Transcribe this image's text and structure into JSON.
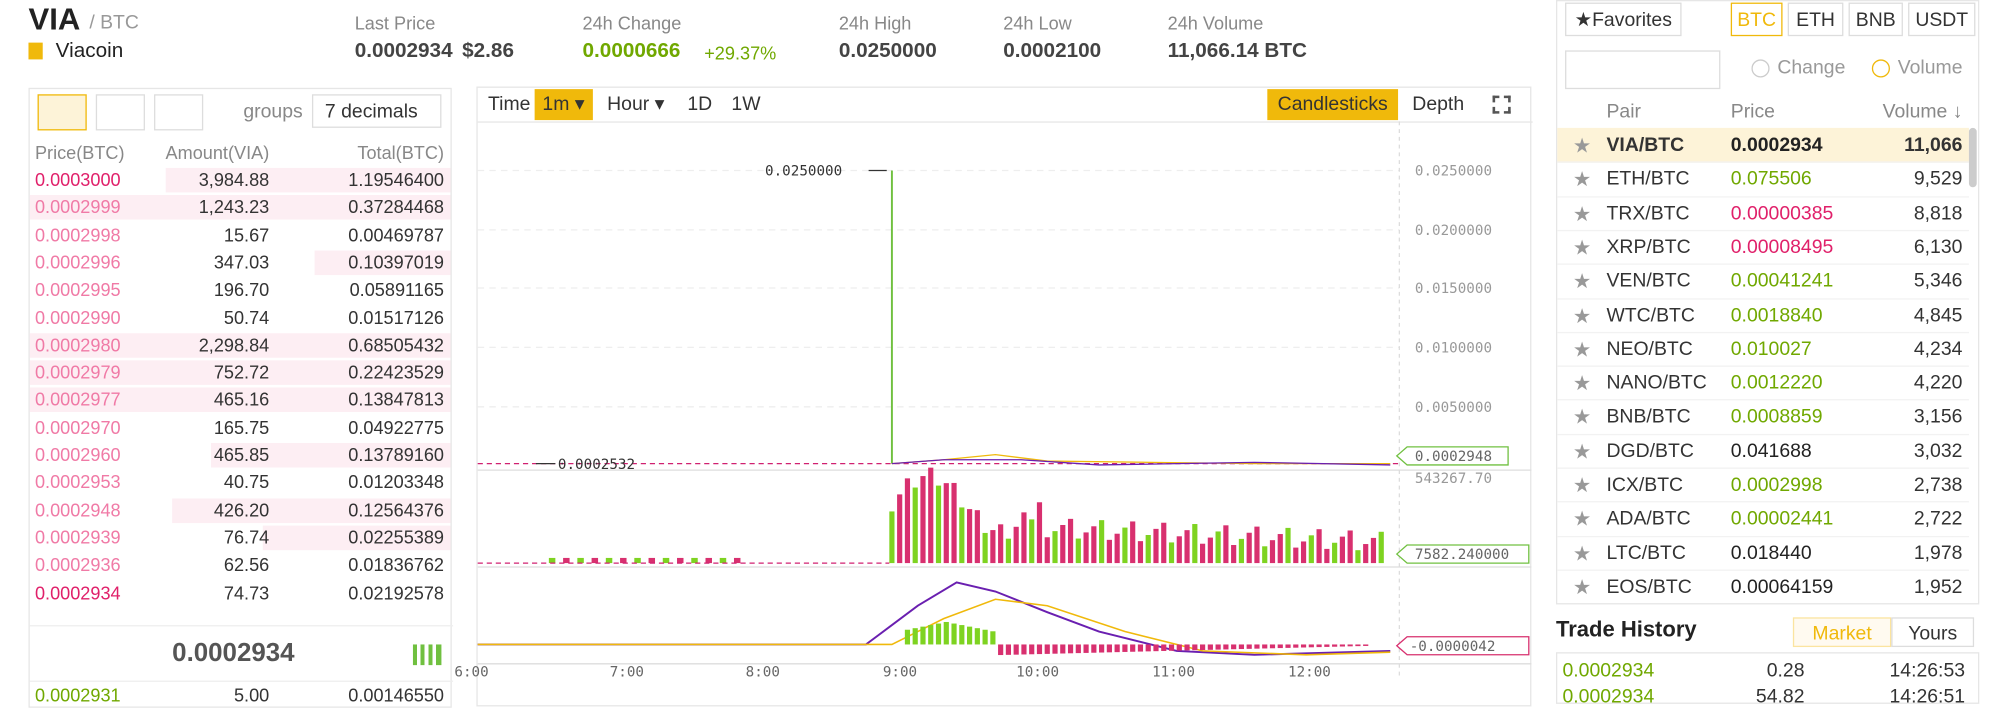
{
  "header": {
    "symbol": "VIA",
    "quote": "/ BTC",
    "name": "Viacoin",
    "stats": [
      {
        "label": "Last Price",
        "value": "0.0002934",
        "extra": "$2.86"
      },
      {
        "label": "24h Change",
        "value": "0.0000666",
        "extra": "+29.37%"
      },
      {
        "label": "24h High",
        "value": "0.0250000"
      },
      {
        "label": "24h Low",
        "value": "0.0002100"
      },
      {
        "label": "24h Volume",
        "value": "11,066.14 BTC"
      }
    ]
  },
  "orderbook": {
    "groups_label": "groups",
    "decimals": "7 decimals",
    "columns": [
      "Price(BTC)",
      "Amount(VIA)",
      "Total(BTC)"
    ],
    "asks": [
      [
        "0.0003000",
        "3,984.88",
        "1.19546400"
      ],
      [
        "0.0002999",
        "1,243.23",
        "0.37284468"
      ],
      [
        "0.0002998",
        "15.67",
        "0.00469787"
      ],
      [
        "0.0002996",
        "347.03",
        "0.10397019"
      ],
      [
        "0.0002995",
        "196.70",
        "0.05891165"
      ],
      [
        "0.0002990",
        "50.74",
        "0.01517126"
      ],
      [
        "0.0002980",
        "2,298.84",
        "0.68505432"
      ],
      [
        "0.0002979",
        "752.72",
        "0.22423529"
      ],
      [
        "0.0002977",
        "465.16",
        "0.13847813"
      ],
      [
        "0.0002970",
        "165.75",
        "0.04922775"
      ],
      [
        "0.0002960",
        "465.85",
        "0.13789160"
      ],
      [
        "0.0002953",
        "40.75",
        "0.01203348"
      ],
      [
        "0.0002948",
        "426.20",
        "0.12564376"
      ],
      [
        "0.0002939",
        "76.74",
        "0.02255389"
      ],
      [
        "0.0002936",
        "62.56",
        "0.01836762"
      ],
      [
        "0.0002934",
        "74.73",
        "0.02192578"
      ]
    ],
    "last": "0.0002934",
    "bids": [
      [
        "0.0002931",
        "5.00",
        "0.00146550"
      ]
    ]
  },
  "chart": {
    "intervals": [
      "Time",
      "1m",
      "Hour",
      "1D",
      "1W"
    ],
    "views": [
      "Candlesticks",
      "Depth"
    ],
    "y_labels": [
      "0.0250000",
      "0.0200000",
      "0.0150000",
      "0.0100000",
      "0.0050000"
    ],
    "current_price": "0.0002948",
    "high_marker": "0.0250000",
    "low_marker": "0.0002532",
    "volume_max": "543267.70",
    "volume_current": "7582.240000",
    "macd_current": "-0.0000042",
    "x_labels": [
      "6:00",
      "7:00",
      "8:00",
      "9:00",
      "10:00",
      "11:00",
      "12:00"
    ]
  },
  "market": {
    "favorites": "Favorites",
    "quotes": [
      "BTC",
      "ETH",
      "BNB",
      "USDT"
    ],
    "sort_options": [
      "Change",
      "Volume"
    ],
    "columns": [
      "Pair",
      "Price",
      "Volume ↓"
    ],
    "rows": [
      {
        "pair": "VIA/BTC",
        "price": "0.0002934",
        "volume": "11,066",
        "trend": "flat"
      },
      {
        "pair": "ETH/BTC",
        "price": "0.075506",
        "volume": "9,529",
        "trend": "up"
      },
      {
        "pair": "TRX/BTC",
        "price": "0.00000385",
        "volume": "8,818",
        "trend": "down"
      },
      {
        "pair": "XRP/BTC",
        "price": "0.00008495",
        "volume": "6,130",
        "trend": "down"
      },
      {
        "pair": "VEN/BTC",
        "price": "0.00041241",
        "volume": "5,346",
        "trend": "up"
      },
      {
        "pair": "WTC/BTC",
        "price": "0.0018840",
        "volume": "4,845",
        "trend": "up"
      },
      {
        "pair": "NEO/BTC",
        "price": "0.010027",
        "volume": "4,234",
        "trend": "up"
      },
      {
        "pair": "NANO/BTC",
        "price": "0.0012220",
        "volume": "4,220",
        "trend": "up"
      },
      {
        "pair": "BNB/BTC",
        "price": "0.0008859",
        "volume": "3,156",
        "trend": "up"
      },
      {
        "pair": "DGD/BTC",
        "price": "0.041688",
        "volume": "3,032",
        "trend": "flat"
      },
      {
        "pair": "ICX/BTC",
        "price": "0.0002998",
        "volume": "2,738",
        "trend": "up"
      },
      {
        "pair": "ADA/BTC",
        "price": "0.00002441",
        "volume": "2,722",
        "trend": "up"
      },
      {
        "pair": "LTC/BTC",
        "price": "0.018440",
        "volume": "1,978",
        "trend": "flat"
      },
      {
        "pair": "EOS/BTC",
        "price": "0.00064159",
        "volume": "1,952",
        "trend": "flat"
      }
    ]
  },
  "trade_history": {
    "title": "Trade History",
    "tabs": [
      "Market",
      "Yours"
    ],
    "rows": [
      [
        "0.0002934",
        "0.28",
        "14:26:53"
      ],
      [
        "0.0002934",
        "54.82",
        "14:26:51"
      ]
    ]
  }
}
